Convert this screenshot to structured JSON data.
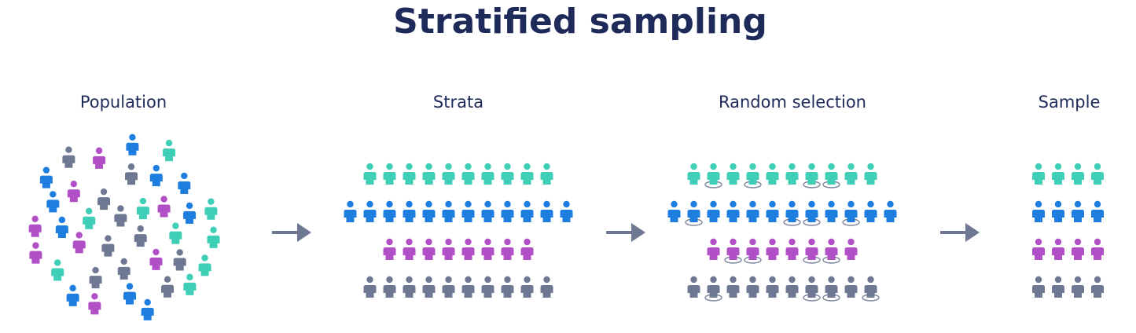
{
  "title": "Stratified sampling",
  "colors": {
    "title": "#1e2a5a",
    "teal": "#3ecfb6",
    "blue": "#1d7ee0",
    "magenta": "#b04fc6",
    "gray": "#6f7893",
    "arrow": "#6f7893",
    "ring": "#7d869e"
  },
  "stages": [
    {
      "id": "population",
      "label": "Population"
    },
    {
      "id": "strata",
      "label": "Strata"
    },
    {
      "id": "random_selection",
      "label": "Random selection"
    },
    {
      "id": "sample",
      "label": "Sample"
    }
  ],
  "strata": [
    {
      "color": "teal",
      "count": 10,
      "selected": [
        1,
        3,
        6,
        7
      ]
    },
    {
      "color": "blue",
      "count": 12,
      "selected": [
        1,
        6,
        7,
        9
      ]
    },
    {
      "color": "magenta",
      "count": 8,
      "selected": [
        1,
        2,
        5,
        6
      ]
    },
    {
      "color": "gray",
      "count": 10,
      "selected": [
        1,
        6,
        7,
        9
      ]
    }
  ],
  "sample_per_stratum": 4,
  "icons": {
    "person": "person-icon",
    "arrow": "arrow-right-icon"
  }
}
